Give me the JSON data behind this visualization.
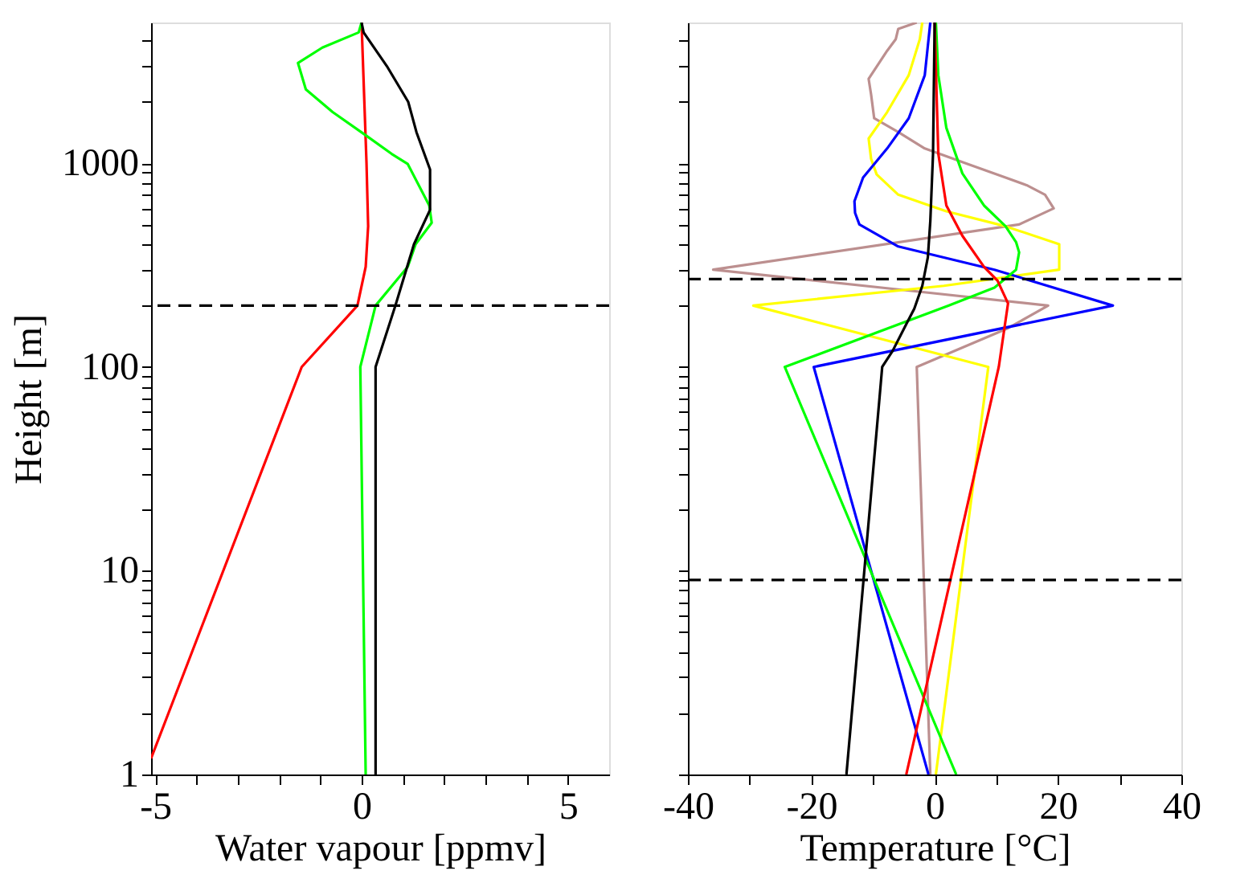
{
  "chart_data": [
    {
      "type": "line",
      "xlabel": "Water vapour [ppmv]",
      "ylabel": "Height [m]",
      "log": "y",
      "xlim": [
        -5.1,
        6
      ],
      "xticks": [
        -5,
        {
          "value": -4,
          "label": null
        },
        {
          "value": -3,
          "label": null
        },
        {
          "value": -2,
          "label": null
        },
        {
          "value": -1,
          "label": null
        },
        0,
        {
          "value": 1,
          "label": null
        },
        {
          "value": 2,
          "label": null
        },
        {
          "value": 3,
          "label": null
        },
        {
          "value": 4,
          "label": null
        },
        5
      ],
      "ylim": [
        1,
        4900
      ],
      "yticks": [
        1,
        {
          "value": 2,
          "label": null
        },
        {
          "value": 3,
          "label": null
        },
        {
          "value": 4,
          "label": null
        },
        {
          "value": 5,
          "label": null
        },
        {
          "value": 6,
          "label": null
        },
        {
          "value": 7,
          "label": null
        },
        {
          "value": 8,
          "label": null
        },
        {
          "value": 9,
          "label": null
        },
        10,
        {
          "value": 20,
          "label": null
        },
        {
          "value": 30,
          "label": null
        },
        {
          "value": 40,
          "label": null
        },
        {
          "value": 50,
          "label": null
        },
        {
          "value": 60,
          "label": null
        },
        {
          "value": 70,
          "label": null
        },
        {
          "value": 80,
          "label": null
        },
        {
          "value": 90,
          "label": null
        },
        100,
        {
          "value": 200,
          "label": null
        },
        {
          "value": 300,
          "label": null
        },
        {
          "value": 400,
          "label": null
        },
        {
          "value": 500,
          "label": null
        },
        {
          "value": 600,
          "label": null
        },
        {
          "value": 700,
          "label": null
        },
        {
          "value": 800,
          "label": null
        },
        {
          "value": 900,
          "label": null
        },
        1000,
        {
          "value": 2000,
          "label": null
        },
        {
          "value": 3000,
          "label": null
        },
        {
          "value": 4000,
          "label": null
        }
      ],
      "series": [
        {
          "color": "#ff0000",
          "x": [
            0,
            0.12,
            0.16,
            0.1,
            -0.1,
            -1.45,
            -5.1
          ],
          "values": [
            4900,
            1000,
            490,
            310,
            200,
            100,
            1.2
          ]
        },
        {
          "color": "#00ff00",
          "x": [
            0,
            -0.07,
            -0.95,
            -1.54,
            -1.35,
            -0.7,
            0.08,
            0.73,
            1.12,
            1.64,
            1.7,
            1.31,
            1.12,
            0.34,
            -0.03,
            0.1
          ],
          "values": [
            4900,
            4380,
            3690,
            3100,
            2300,
            1780,
            1380,
            1110,
            990,
            620,
            510,
            400,
            310,
            200,
            100,
            1
          ]
        },
        {
          "color": "#000000",
          "x": [
            0,
            0.05,
            0.61,
            1.13,
            1.33,
            1.66,
            1.66,
            1.27,
            0.82,
            0.34,
            0.34
          ],
          "values": [
            4900,
            4380,
            3000,
            2000,
            1420,
            930,
            590,
            400,
            200,
            100,
            1
          ]
        }
      ],
      "ref_lines": [
        {
          "axis": "y",
          "value": 200,
          "color": "#000000",
          "line_style": "dashed"
        }
      ]
    },
    {
      "type": "line",
      "xlabel": "Temperature [°C]",
      "log": "y",
      "tick_labels": "x",
      "xlim": [
        -40,
        40
      ],
      "xticks": [
        -40,
        {
          "value": -30,
          "label": null
        },
        -20,
        {
          "value": -10,
          "label": null
        },
        0,
        {
          "value": 10,
          "label": null
        },
        20,
        {
          "value": 30,
          "label": null
        },
        40
      ],
      "ylim": [
        1,
        4900
      ],
      "yticks": [
        {
          "value": 1,
          "label": null
        },
        {
          "value": 2,
          "label": null
        },
        {
          "value": 3,
          "label": null
        },
        {
          "value": 4,
          "label": null
        },
        {
          "value": 5,
          "label": null
        },
        {
          "value": 6,
          "label": null
        },
        {
          "value": 7,
          "label": null
        },
        {
          "value": 8,
          "label": null
        },
        {
          "value": 9,
          "label": null
        },
        {
          "value": 10,
          "label": null
        },
        {
          "value": 20,
          "label": null
        },
        {
          "value": 30,
          "label": null
        },
        {
          "value": 40,
          "label": null
        },
        {
          "value": 50,
          "label": null
        },
        {
          "value": 60,
          "label": null
        },
        {
          "value": 70,
          "label": null
        },
        {
          "value": 80,
          "label": null
        },
        {
          "value": 90,
          "label": null
        },
        {
          "value": 100,
          "label": null
        },
        {
          "value": 200,
          "label": null
        },
        {
          "value": 300,
          "label": null
        },
        {
          "value": 400,
          "label": null
        },
        {
          "value": 500,
          "label": null
        },
        {
          "value": 600,
          "label": null
        },
        {
          "value": 700,
          "label": null
        },
        {
          "value": 800,
          "label": null
        },
        {
          "value": 900,
          "label": null
        },
        {
          "value": 1000,
          "label": null
        },
        {
          "value": 2000,
          "label": null
        },
        {
          "value": 3000,
          "label": null
        },
        {
          "value": 4000,
          "label": null
        }
      ],
      "series": [
        {
          "color": "#bc8f8f",
          "x": [
            -2.9,
            -5.9,
            -6.3,
            -7.7,
            -10.7,
            -10.3,
            -9.8,
            -5.9,
            -1.6,
            5.4,
            11.5,
            14.9,
            17.9,
            19.3,
            13.7,
            -35.9,
            -5.9,
            18.4,
            11.9,
            -2.9,
            -0.7
          ],
          "values": [
            4900,
            4560,
            4060,
            3560,
            2590,
            2170,
            1660,
            1420,
            1180,
            990,
            850,
            780,
            700,
            600,
            500,
            300,
            240,
            200,
            155,
            100,
            1
          ]
        },
        {
          "color": "#ffff00",
          "x": [
            -2.0,
            -2.4,
            -4.2,
            -7.7,
            -10.7,
            -10.3,
            -9.4,
            -5.9,
            1.9,
            11.5,
            20.2,
            20.2,
            1.5,
            -29.4,
            8.7,
            0.2
          ],
          "values": [
            4900,
            4060,
            2700,
            1780,
            1320,
            1050,
            880,
            700,
            580,
            490,
            400,
            300,
            250,
            200,
            100,
            1
          ]
        },
        {
          "color": "#0000ff",
          "x": [
            -0.7,
            -1.6,
            -4.2,
            -7.7,
            -11.6,
            -13.0,
            -12.9,
            -12.2,
            -5.9,
            9.7,
            28.9,
            -19.6,
            -1.0
          ],
          "values": [
            4900,
            2700,
            1660,
            1180,
            850,
            650,
            570,
            500,
            390,
            300,
            200,
            100,
            1
          ]
        },
        {
          "color": "#00ff00",
          "x": [
            0.2,
            0.6,
            1.9,
            4.5,
            8,
            11.5,
            13.2,
            13.7,
            13.2,
            9.7,
            2.3,
            -24.3,
            3.5
          ],
          "values": [
            4900,
            2700,
            1490,
            890,
            620,
            490,
            410,
            365,
            300,
            245,
            200,
            100,
            1
          ]
        },
        {
          "color": "#ff0000",
          "x": [
            0,
            0.35,
            0.6,
            1.9,
            4.5,
            8.0,
            10.2,
            11.9,
            10.4,
            -4.6
          ],
          "values": [
            4900,
            2000,
            1110,
            620,
            440,
            310,
            265,
            205,
            100,
            1
          ]
        },
        {
          "color": "#000000",
          "x": [
            0,
            -0.26,
            -0.7,
            -1.1,
            -2.0,
            -3.3,
            -4.6,
            -6.8,
            -8.5,
            -9.0,
            -14.3
          ],
          "values": [
            4900,
            1110,
            520,
            345,
            250,
            193,
            162,
            120,
            100,
            67,
            1
          ]
        }
      ],
      "ref_lines": [
        {
          "axis": "y",
          "value": 270,
          "color": "#000000",
          "line_style": "dashed"
        },
        {
          "axis": "y",
          "value": 9,
          "color": "#000000",
          "line_style": "dashed"
        }
      ]
    }
  ]
}
